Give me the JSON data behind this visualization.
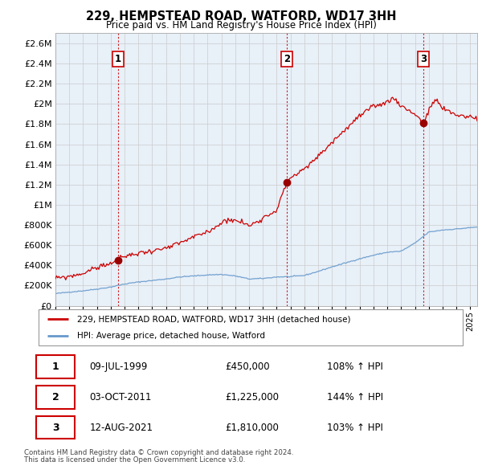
{
  "title": "229, HEMPSTEAD ROAD, WATFORD, WD17 3HH",
  "subtitle": "Price paid vs. HM Land Registry's House Price Index (HPI)",
  "legend_property": "229, HEMPSTEAD ROAD, WATFORD, WD17 3HH (detached house)",
  "legend_hpi": "HPI: Average price, detached house, Watford",
  "footer1": "Contains HM Land Registry data © Crown copyright and database right 2024.",
  "footer2": "This data is licensed under the Open Government Licence v3.0.",
  "sales": [
    {
      "label": "1",
      "date": "09-JUL-1999",
      "price": 450000,
      "hpi_pct": "108% ↑ HPI",
      "x": 1999.53
    },
    {
      "label": "2",
      "date": "03-OCT-2011",
      "price": 1225000,
      "hpi_pct": "144% ↑ HPI",
      "x": 2011.75
    },
    {
      "label": "3",
      "date": "12-AUG-2021",
      "price": 1810000,
      "hpi_pct": "103% ↑ HPI",
      "x": 2021.62
    }
  ],
  "ylim": [
    0,
    2700000
  ],
  "yticks": [
    0,
    200000,
    400000,
    600000,
    800000,
    1000000,
    1200000,
    1400000,
    1600000,
    1800000,
    2000000,
    2200000,
    2400000,
    2600000
  ],
  "ytick_labels": [
    "£0",
    "£200K",
    "£400K",
    "£600K",
    "£800K",
    "£1M",
    "£1.2M",
    "£1.4M",
    "£1.6M",
    "£1.8M",
    "£2M",
    "£2.2M",
    "£2.4M",
    "£2.6M"
  ],
  "property_color": "#cc0000",
  "hpi_color": "#6699cc",
  "sale_marker_color": "#990000",
  "vline_color": "#cc0000",
  "chart_bg": "#e8f0f8",
  "background_color": "#ffffff",
  "grid_color": "#cccccc",
  "xlim_start": 1995.0,
  "xlim_end": 2025.5
}
